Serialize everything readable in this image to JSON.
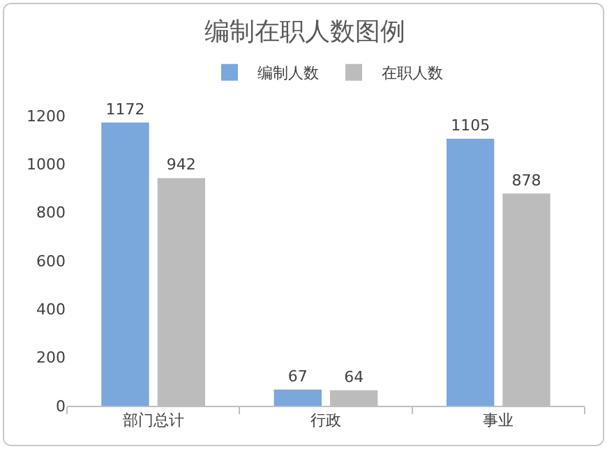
{
  "chart_data": {
    "type": "bar",
    "title": "编制在职人数图例",
    "categories": [
      "部门总计",
      "行政",
      "事业"
    ],
    "series": [
      {
        "name": "编制人数",
        "color": "#7aa7dc",
        "values": [
          1172,
          67,
          1105
        ]
      },
      {
        "name": "在职人数",
        "color": "#bcbcbc",
        "values": [
          942,
          64,
          878
        ]
      }
    ],
    "ylim": [
      0,
      1200
    ],
    "yticks": [
      0,
      200,
      400,
      600,
      800,
      1000,
      1200
    ],
    "grid": false,
    "legend": "top",
    "data_labels": true
  }
}
